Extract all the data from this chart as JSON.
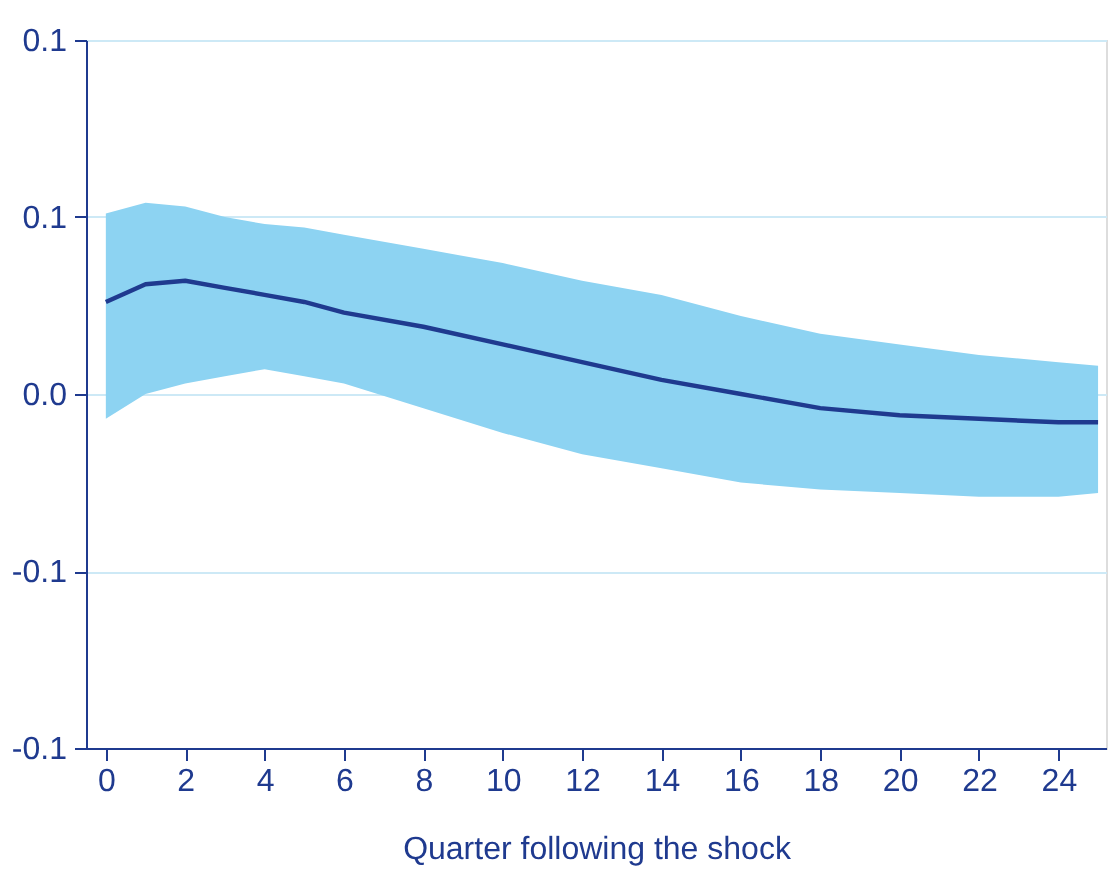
{
  "chart_data": {
    "type": "line",
    "xlabel": "Quarter following the shock",
    "x": [
      0,
      1,
      2,
      3,
      4,
      5,
      6,
      8,
      10,
      12,
      14,
      16,
      18,
      20,
      22,
      24,
      25
    ],
    "series": [
      {
        "color": "#1f3a8f",
        "values": [
          0.026,
          0.031,
          0.032,
          0.03,
          0.028,
          0.026,
          0.023,
          0.019,
          0.014,
          0.009,
          0.004,
          0.0,
          -0.004,
          -0.006,
          -0.007,
          -0.008,
          -0.008
        ],
        "upper": [
          0.051,
          0.054,
          0.053,
          0.05,
          0.048,
          0.047,
          0.045,
          0.041,
          0.037,
          0.032,
          0.028,
          0.022,
          0.017,
          0.014,
          0.011,
          0.009,
          0.008
        ],
        "lower": [
          -0.007,
          0.0,
          0.003,
          0.005,
          0.007,
          0.005,
          0.003,
          -0.004,
          -0.011,
          -0.017,
          -0.021,
          -0.025,
          -0.027,
          -0.028,
          -0.029,
          -0.029,
          -0.028
        ]
      }
    ],
    "xlim": [
      -0.5,
      25.2
    ],
    "xticks": [
      0,
      2,
      4,
      6,
      8,
      10,
      12,
      14,
      16,
      18,
      20,
      22,
      24
    ],
    "ylim": [
      -0.1,
      0.1
    ],
    "yticks": [
      {
        "value": 0.1,
        "label": "0.1"
      },
      {
        "value": 0.05,
        "label": "0.1"
      },
      {
        "value": 0.0,
        "label": "0.0"
      },
      {
        "value": -0.05,
        "label": "-0.1"
      },
      {
        "value": -0.1,
        "label": "-0.1"
      }
    ],
    "grid": "y",
    "marker": "none",
    "line_style": "solid"
  }
}
